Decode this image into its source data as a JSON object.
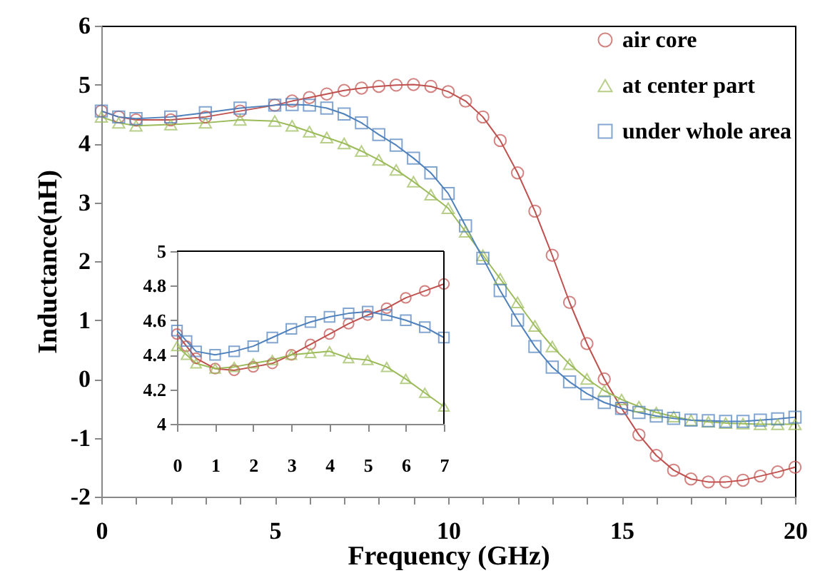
{
  "chart_data": [
    {
      "type": "line",
      "xlabel": "Frequency (GHz)",
      "ylabel": "Inductance(nH)",
      "xlim": [
        0,
        20
      ],
      "ylim": [
        -2,
        6
      ],
      "xticks": [
        0,
        {
          "value": 1,
          "label": null
        },
        {
          "value": 2,
          "label": null
        },
        {
          "value": 3,
          "label": null
        },
        {
          "value": 4,
          "label": null
        },
        5,
        {
          "value": 6,
          "label": null
        },
        {
          "value": 7,
          "label": null
        },
        {
          "value": 8,
          "label": null
        },
        {
          "value": 9,
          "label": null
        },
        10,
        {
          "value": 11,
          "label": null
        },
        {
          "value": 12,
          "label": null
        },
        {
          "value": 13,
          "label": null
        },
        {
          "value": 14,
          "label": null
        },
        15,
        {
          "value": 16,
          "label": null
        },
        {
          "value": 17,
          "label": null
        },
        {
          "value": 18,
          "label": null
        },
        {
          "value": 19,
          "label": null
        },
        20
      ],
      "yticks": [
        -2,
        -1,
        0,
        1,
        2,
        3,
        4,
        5,
        6
      ],
      "grid": false,
      "legend": "top right",
      "x": [
        0,
        0.5,
        1,
        2,
        3,
        4,
        5,
        5.5,
        6,
        6.5,
        7,
        7.5,
        8,
        8.5,
        9,
        9.5,
        10,
        10.5,
        11,
        11.5,
        12,
        12.5,
        13,
        13.5,
        14,
        14.5,
        15,
        15.5,
        16,
        16.5,
        17,
        17.5,
        18,
        18.5,
        19,
        19.5,
        20
      ],
      "series": [
        {
          "name": "air core",
          "color": "#c0504d",
          "marker": "circle",
          "values": [
            4.55,
            4.45,
            4.4,
            4.4,
            4.45,
            4.55,
            4.65,
            4.72,
            4.78,
            4.84,
            4.9,
            4.94,
            4.97,
            4.99,
            5.0,
            4.97,
            4.88,
            4.72,
            4.45,
            4.05,
            3.5,
            2.85,
            2.1,
            1.3,
            0.6,
            0.0,
            -0.5,
            -0.95,
            -1.3,
            -1.55,
            -1.7,
            -1.75,
            -1.75,
            -1.72,
            -1.65,
            -1.58,
            -1.5
          ]
        },
        {
          "name": "at center part",
          "color": "#9bbb59",
          "marker": "triangle",
          "values": [
            4.45,
            4.35,
            4.3,
            4.32,
            4.35,
            4.4,
            4.38,
            4.3,
            4.2,
            4.1,
            4.0,
            3.87,
            3.72,
            3.55,
            3.35,
            3.13,
            2.9,
            2.5,
            2.1,
            1.7,
            1.3,
            0.9,
            0.55,
            0.25,
            0.0,
            -0.2,
            -0.35,
            -0.47,
            -0.57,
            -0.64,
            -0.7,
            -0.73,
            -0.75,
            -0.76,
            -0.77,
            -0.77,
            -0.77
          ]
        },
        {
          "name": "under whole area",
          "color": "#4f81bd",
          "marker": "square",
          "values": [
            4.55,
            4.45,
            4.42,
            4.45,
            4.52,
            4.6,
            4.65,
            4.66,
            4.65,
            4.6,
            4.5,
            4.35,
            4.15,
            3.97,
            3.75,
            3.5,
            3.15,
            2.6,
            2.05,
            1.5,
            1.0,
            0.55,
            0.2,
            -0.05,
            -0.25,
            -0.4,
            -0.5,
            -0.57,
            -0.63,
            -0.67,
            -0.7,
            -0.71,
            -0.72,
            -0.72,
            -0.7,
            -0.68,
            -0.65
          ]
        }
      ]
    },
    {
      "type": "line",
      "xlim": [
        0,
        7
      ],
      "ylim": [
        4,
        5
      ],
      "xticks": [
        0,
        1,
        2,
        3,
        4,
        5,
        6,
        7
      ],
      "yticks": [
        4,
        {
          "value": 4.2,
          "label": "4.2"
        },
        {
          "value": 4.4,
          "label": "4.4"
        },
        {
          "value": 4.6,
          "label": "4.6"
        },
        {
          "value": 4.8,
          "label": "4.8"
        },
        5
      ],
      "grid": false,
      "x": [
        0,
        0.25,
        0.5,
        1,
        1.5,
        2,
        2.5,
        3,
        3.5,
        4,
        4.5,
        5,
        5.5,
        6,
        6.5,
        7
      ],
      "series": [
        {
          "color": "#c0504d",
          "marker": "circle",
          "values": [
            4.52,
            4.45,
            4.38,
            4.32,
            4.31,
            4.33,
            4.35,
            4.4,
            4.46,
            4.52,
            4.58,
            4.63,
            4.67,
            4.73,
            4.77,
            4.81
          ]
        },
        {
          "color": "#9bbb59",
          "marker": "triangle",
          "values": [
            4.45,
            4.4,
            4.35,
            4.32,
            4.33,
            4.35,
            4.37,
            4.4,
            4.41,
            4.42,
            4.38,
            4.37,
            4.33,
            4.26,
            4.18,
            4.1
          ]
        },
        {
          "color": "#4f81bd",
          "marker": "square",
          "values": [
            4.54,
            4.48,
            4.42,
            4.4,
            4.42,
            4.45,
            4.5,
            4.55,
            4.59,
            4.62,
            4.64,
            4.65,
            4.63,
            4.6,
            4.56,
            4.5
          ]
        }
      ]
    }
  ]
}
